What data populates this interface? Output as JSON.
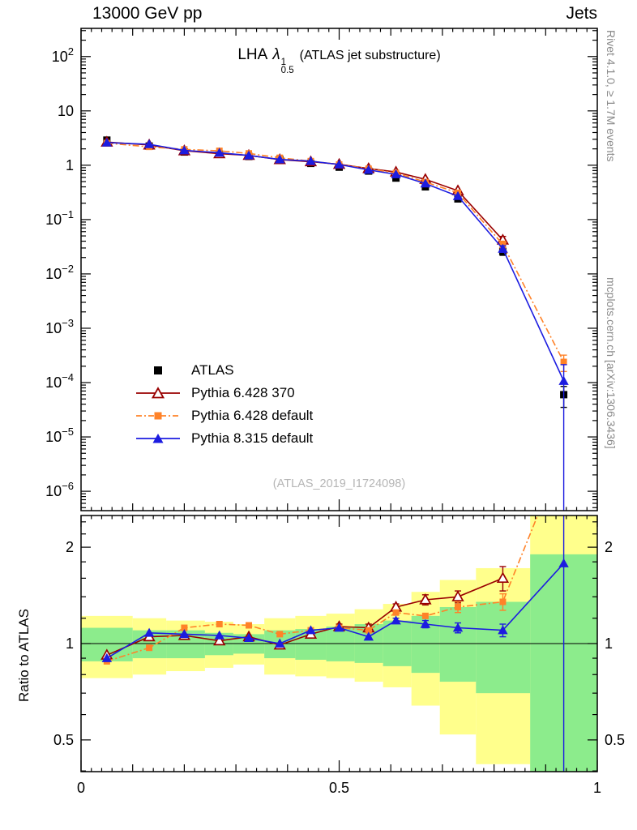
{
  "header": {
    "left": "13000 GeV pp",
    "right": "Jets"
  },
  "main_title": {
    "prefix": "LHA",
    "symbol": "λ",
    "sup": "1",
    "sub": "0.5",
    "suffix": "(ATLAS jet substructure)"
  },
  "watermark": "(ATLAS_2019_I1724098)",
  "side_texts": {
    "top": "Rivet 4.1.0, ≥ 1.7M events",
    "bottom": "mcplots.cern.ch [arXiv:1306.3436]"
  },
  "ratio_label": "Ratio to ATLAS",
  "legend": [
    {
      "label": "ATLAS"
    },
    {
      "label": "Pythia 6.428 370"
    },
    {
      "label": "Pythia 6.428 default"
    },
    {
      "label": "Pythia 8.315 default"
    }
  ],
  "chart_data": {
    "type": "line",
    "title": "LHA lambda^1_0.5 (ATLAS jet substructure)",
    "xlim": [
      0,
      1
    ],
    "xlabel_ticks": [
      0,
      0.5,
      1
    ],
    "main_ylim": [
      4.4e-07,
      330
    ],
    "main_yticks_exp": [
      2,
      1,
      0,
      -1,
      -2,
      -3,
      -4,
      -5,
      -6
    ],
    "ratio_ylim": [
      0.398,
      2.512
    ],
    "ratio_yticks": [
      2,
      1,
      0.5
    ],
    "x": [
      0.05,
      0.132,
      0.2,
      0.268,
      0.325,
      0.385,
      0.445,
      0.5,
      0.557,
      0.61,
      0.667,
      0.73,
      0.817,
      0.935
    ],
    "series": [
      {
        "name": "ATLAS",
        "color": "#000000",
        "marker": "square",
        "line": "none",
        "size": 9,
        "main": [
          2.9,
          2.25,
          1.75,
          1.6,
          1.45,
          1.28,
          1.08,
          0.92,
          0.78,
          0.58,
          0.4,
          0.24,
          0.026,
          6e-05
        ],
        "main_err": [
          0,
          0,
          0,
          0,
          0,
          0,
          0,
          0,
          0,
          0,
          0,
          0,
          0.004,
          2.5e-05
        ],
        "ratio": null,
        "ratio_err": null
      },
      {
        "name": "Pythia 6.428 370",
        "color": "#990000",
        "marker": "triangle-open",
        "line": "solid",
        "size": 11,
        "main": [
          2.67,
          2.36,
          1.85,
          1.63,
          1.52,
          1.27,
          1.16,
          1.04,
          0.87,
          0.75,
          0.55,
          0.34,
          0.042,
          null
        ],
        "main_err": [
          0,
          0,
          0,
          0,
          0,
          0,
          0,
          0,
          0,
          0,
          0,
          0.01,
          0.007,
          null
        ],
        "ratio": [
          0.92,
          1.05,
          1.06,
          1.02,
          1.05,
          0.99,
          1.07,
          1.13,
          1.12,
          1.3,
          1.37,
          1.4,
          1.6,
          null
        ],
        "ratio_err": [
          0,
          0,
          0,
          0,
          0,
          0,
          0,
          0.02,
          0.03,
          0.03,
          0.05,
          0.06,
          0.14,
          null
        ]
      },
      {
        "name": "Pythia 6.428 default",
        "color": "#ff8228",
        "marker": "square",
        "line": "dashdot",
        "size": 8,
        "main": [
          2.55,
          2.18,
          1.96,
          1.84,
          1.65,
          1.37,
          1.19,
          1.03,
          0.86,
          0.72,
          0.49,
          0.31,
          0.035,
          0.00024
        ],
        "main_err": [
          0,
          0,
          0,
          0,
          0,
          0,
          0,
          0,
          0,
          0,
          0,
          0,
          0.005,
          8e-05
        ],
        "ratio": [
          0.88,
          0.97,
          1.12,
          1.15,
          1.14,
          1.07,
          1.1,
          1.12,
          1.1,
          1.25,
          1.22,
          1.3,
          1.35,
          4.0
        ],
        "ratio_err": [
          0,
          0,
          0,
          0,
          0,
          0,
          0,
          0,
          0,
          0,
          0,
          0.05,
          0.08,
          null
        ]
      },
      {
        "name": "Pythia 8.315 default",
        "color": "#1c1ce0",
        "marker": "triangle",
        "line": "solid",
        "size": 11,
        "main": [
          2.61,
          2.43,
          1.87,
          1.7,
          1.51,
          1.28,
          1.19,
          1.03,
          0.82,
          0.68,
          0.46,
          0.27,
          0.029,
          0.000107
        ],
        "main_err": [
          0,
          0,
          0,
          0,
          0,
          0,
          0,
          0,
          0,
          0,
          0,
          0,
          0.004,
          0.0001069
        ],
        "ratio": [
          0.9,
          1.08,
          1.07,
          1.06,
          1.04,
          1.0,
          1.1,
          1.12,
          1.05,
          1.18,
          1.15,
          1.12,
          1.1,
          1.78
        ],
        "ratio_err": [
          0,
          0,
          0,
          0,
          0,
          0,
          0,
          0,
          0,
          0.02,
          0.03,
          0.04,
          0.05,
          2.0
        ]
      }
    ],
    "bands": {
      "edges": [
        0.0,
        0.1,
        0.165,
        0.24,
        0.295,
        0.355,
        0.415,
        0.475,
        0.53,
        0.585,
        0.64,
        0.695,
        0.765,
        0.87,
        1.0
      ],
      "yellow_lo": [
        0.78,
        0.8,
        0.82,
        0.84,
        0.86,
        0.8,
        0.79,
        0.78,
        0.76,
        0.73,
        0.64,
        0.52,
        0.42,
        0.4
      ],
      "yellow_hi": [
        1.22,
        1.2,
        1.18,
        1.17,
        1.15,
        1.2,
        1.22,
        1.24,
        1.28,
        1.33,
        1.45,
        1.58,
        1.72,
        2.6
      ],
      "green_lo": [
        0.88,
        0.9,
        0.9,
        0.92,
        0.93,
        0.9,
        0.89,
        0.88,
        0.87,
        0.85,
        0.81,
        0.76,
        0.7,
        0.385
      ],
      "green_hi": [
        1.12,
        1.1,
        1.1,
        1.08,
        1.07,
        1.1,
        1.11,
        1.13,
        1.15,
        1.18,
        1.22,
        1.3,
        1.35,
        1.9
      ],
      "yellow_color": "#ffff8c",
      "green_color": "#8cec8c"
    },
    "reference_line": 1.0
  }
}
